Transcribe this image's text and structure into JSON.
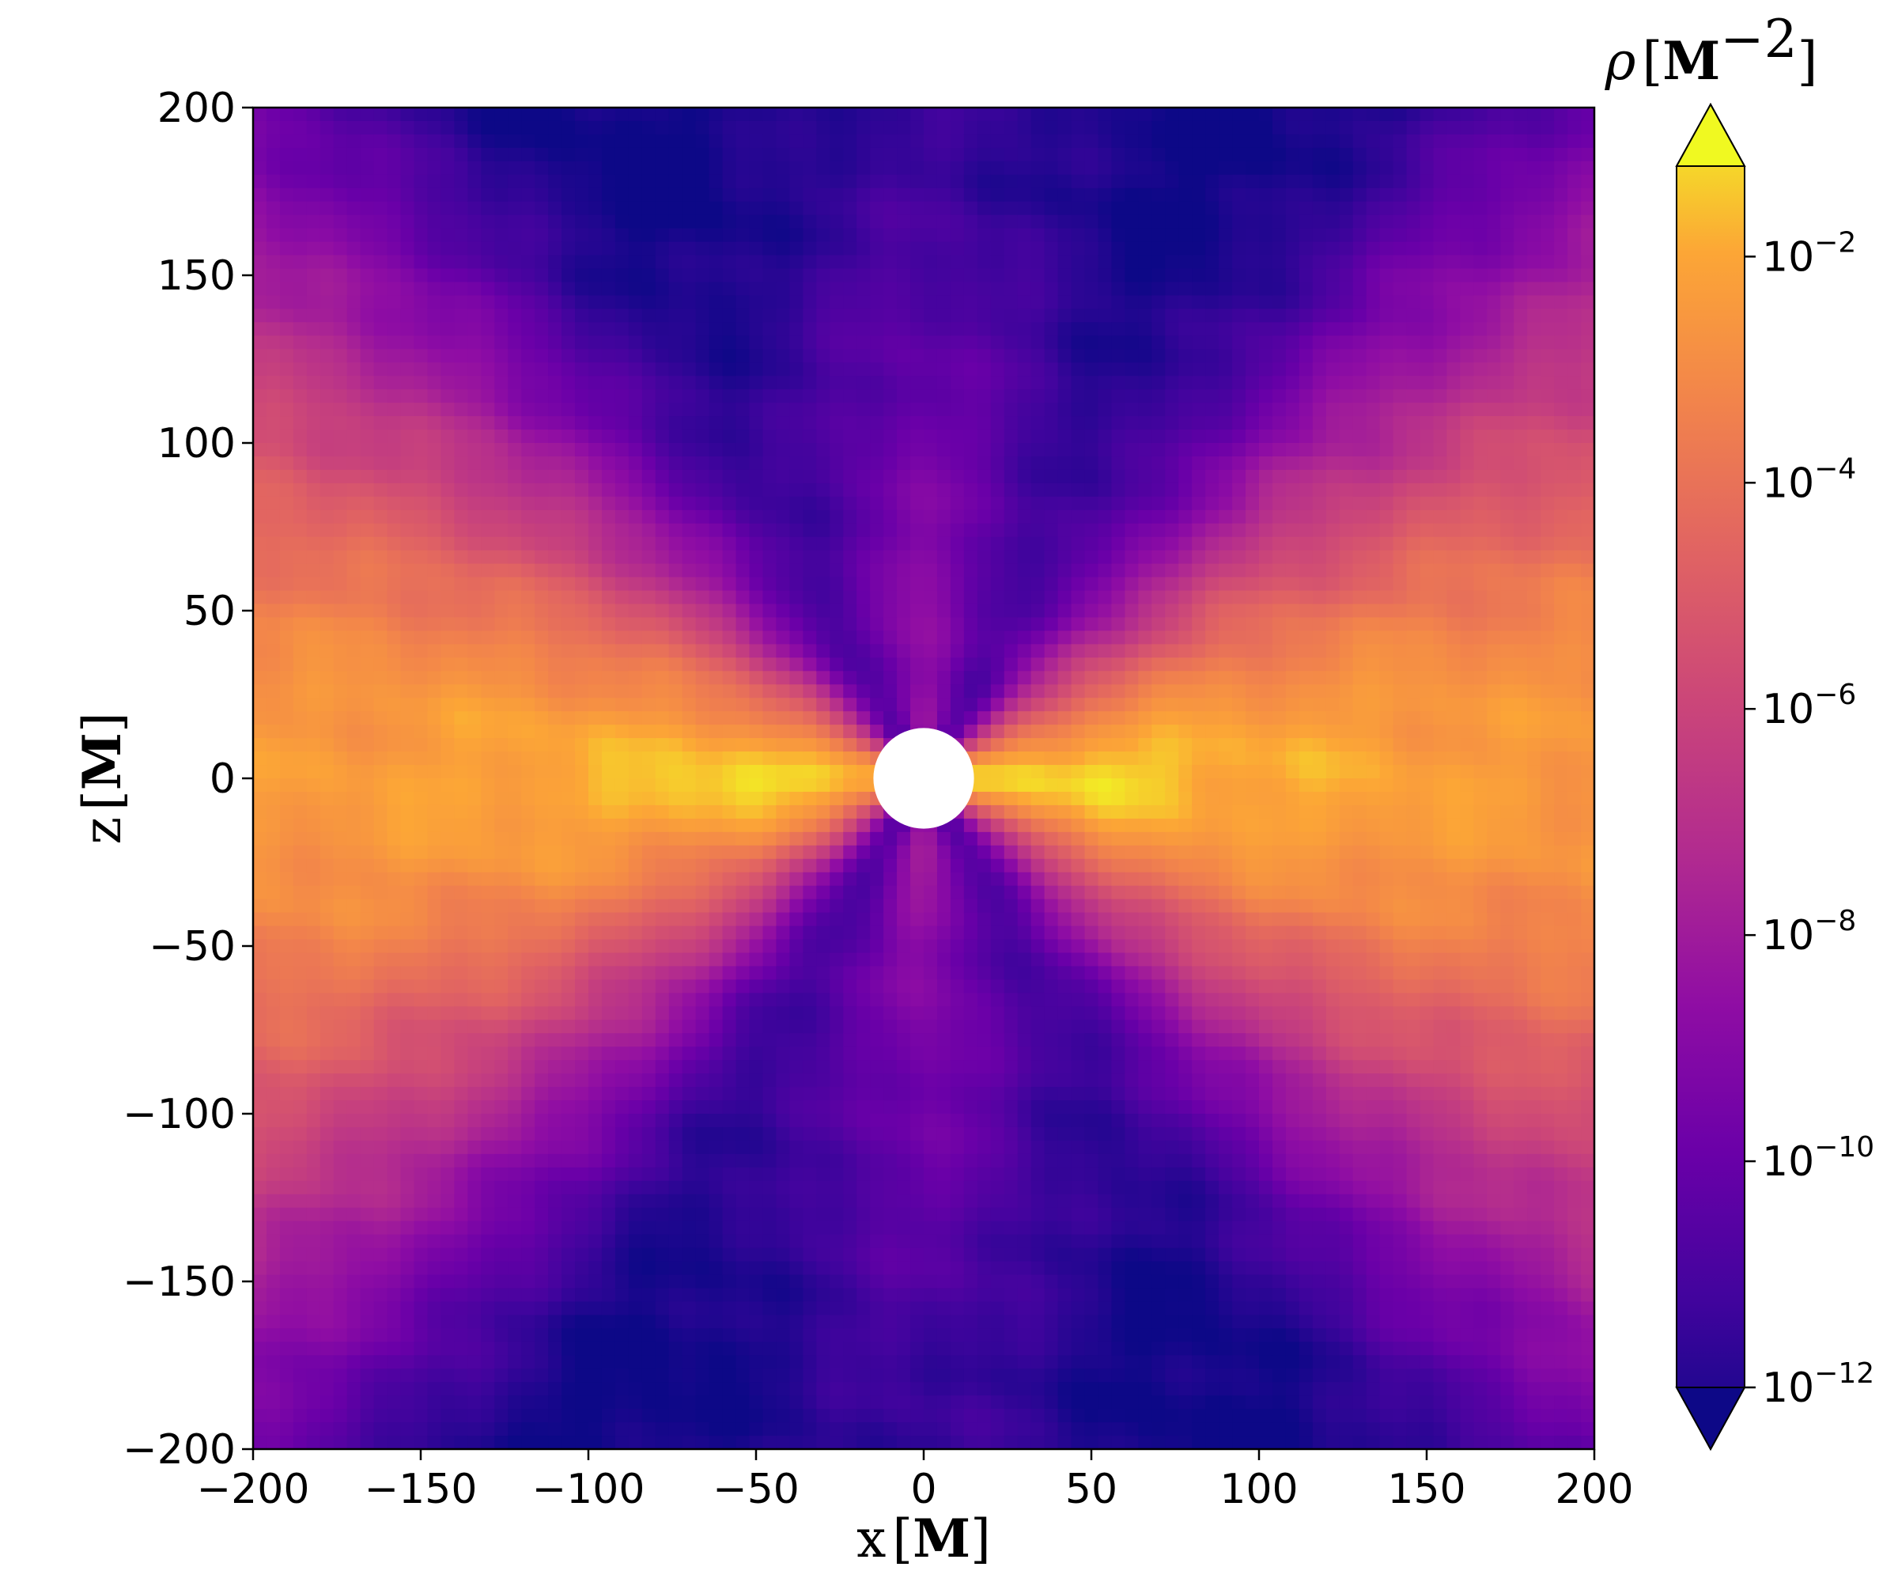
{
  "chart_data": {
    "type": "heatmap",
    "title": "",
    "xlabel": {
      "var": "x",
      "unit": "M"
    },
    "ylabel": {
      "var": "z",
      "unit": "M"
    },
    "xlim": [
      -200,
      200
    ],
    "ylim": [
      -200,
      200
    ],
    "xticks": [
      {
        "value": -200,
        "label": "−200"
      },
      {
        "value": -150,
        "label": "−150"
      },
      {
        "value": -100,
        "label": "−100"
      },
      {
        "value": -50,
        "label": "−50"
      },
      {
        "value": 0,
        "label": "0"
      },
      {
        "value": 50,
        "label": "50"
      },
      {
        "value": 100,
        "label": "100"
      },
      {
        "value": 150,
        "label": "150"
      },
      {
        "value": 200,
        "label": "200"
      }
    ],
    "yticks": [
      {
        "value": 200,
        "label": "200"
      },
      {
        "value": 150,
        "label": "150"
      },
      {
        "value": 100,
        "label": "100"
      },
      {
        "value": 50,
        "label": "50"
      },
      {
        "value": 0,
        "label": "0"
      },
      {
        "value": -50,
        "label": "−50"
      },
      {
        "value": -100,
        "label": "−100"
      },
      {
        "value": -150,
        "label": "−150"
      },
      {
        "value": -200,
        "label": "−200"
      }
    ],
    "colorbar": {
      "label": {
        "symbol": "ρ",
        "unit": "M",
        "exponent": "−2"
      },
      "scale": "log",
      "range_log10": [
        -12,
        -1.2
      ],
      "extend": "both",
      "colormap": "plasma",
      "ticks": [
        {
          "exp": -12,
          "base": "10",
          "sup": "−12"
        },
        {
          "exp": -10,
          "base": "10",
          "sup": "−10"
        },
        {
          "exp": -8,
          "base": "10",
          "sup": "−8"
        },
        {
          "exp": -6,
          "base": "10",
          "sup": "−6"
        },
        {
          "exp": -4,
          "base": "10",
          "sup": "−4"
        },
        {
          "exp": -2,
          "base": "10",
          "sup": "−2"
        }
      ]
    },
    "excised_region": {
      "center": [
        0,
        0
      ],
      "radius": 15,
      "color": "#ffffff"
    },
    "field_description": "Density map of an accretion flow: dense yellow-orange disk along the equator (peak ~10^-2 near x=±50), low-density purple/blue funnel along the polar axis (~10^-11 at |z|≈200)",
    "colors": {
      "low": "#0d0887",
      "mid_low": "#6a00a8",
      "mid": "#b12a90",
      "mid_high": "#e16462",
      "high": "#fca636",
      "top": "#f0f921"
    }
  }
}
